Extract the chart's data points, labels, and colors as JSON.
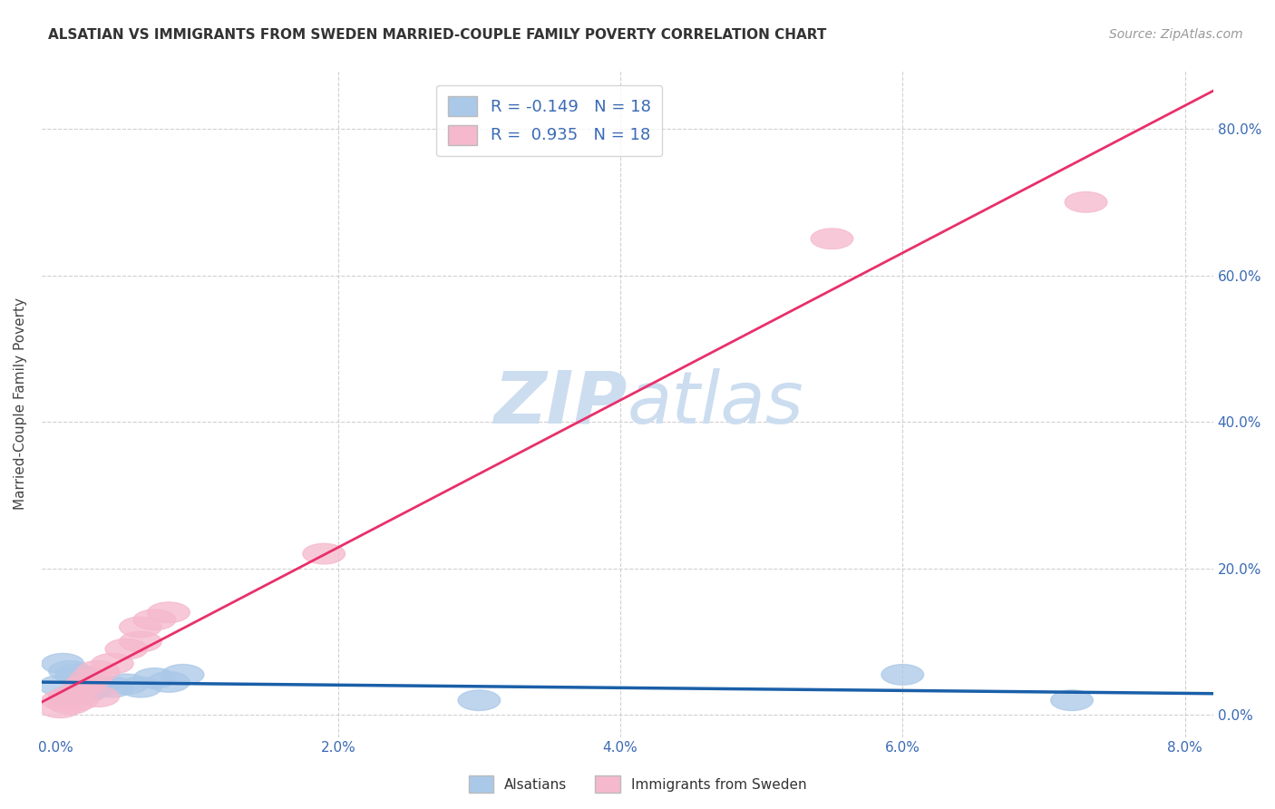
{
  "title": "ALSATIAN VS IMMIGRANTS FROM SWEDEN MARRIED-COUPLE FAMILY POVERTY CORRELATION CHART",
  "source": "Source: ZipAtlas.com",
  "ylabel": "Married-Couple Family Poverty",
  "xlabel_ticks": [
    "0.0%",
    "2.0%",
    "4.0%",
    "6.0%",
    "8.0%"
  ],
  "xlabel_vals": [
    0.0,
    0.02,
    0.04,
    0.06,
    0.08
  ],
  "ylabel_ticks": [
    "0.0%",
    "20.0%",
    "40.0%",
    "60.0%",
    "80.0%"
  ],
  "ylabel_vals": [
    0.0,
    0.2,
    0.4,
    0.6,
    0.8
  ],
  "xlim": [
    -0.001,
    0.082
  ],
  "ylim": [
    -0.03,
    0.88
  ],
  "alsatian_x": [
    0.0003,
    0.0005,
    0.001,
    0.001,
    0.0015,
    0.002,
    0.002,
    0.0025,
    0.003,
    0.004,
    0.005,
    0.006,
    0.007,
    0.008,
    0.009,
    0.03,
    0.06,
    0.072
  ],
  "alsatian_y": [
    0.04,
    0.07,
    0.06,
    0.025,
    0.055,
    0.03,
    0.045,
    0.035,
    0.04,
    0.038,
    0.042,
    0.038,
    0.05,
    0.045,
    0.055,
    0.02,
    0.055,
    0.02
  ],
  "sweden_x": [
    0.0003,
    0.0005,
    0.001,
    0.001,
    0.0015,
    0.002,
    0.0025,
    0.003,
    0.003,
    0.004,
    0.005,
    0.006,
    0.006,
    0.007,
    0.008,
    0.019,
    0.055,
    0.073
  ],
  "sweden_y": [
    0.01,
    0.02,
    0.015,
    0.025,
    0.02,
    0.04,
    0.05,
    0.06,
    0.025,
    0.07,
    0.09,
    0.1,
    0.12,
    0.13,
    0.14,
    0.22,
    0.65,
    0.7
  ],
  "R_alsatian": -0.149,
  "N_alsatian": 18,
  "R_sweden": 0.935,
  "N_sweden": 18,
  "color_alsatian": "#aac8e8",
  "color_alsatian_edge": "#aac8e8",
  "color_alsatian_line": "#1a5fa8",
  "color_sweden": "#f5b8cc",
  "color_sweden_edge": "#f5b8cc",
  "color_sweden_line": "#e8306a",
  "watermark_top": "ZIP",
  "watermark_bottom": "atlas",
  "watermark_color": "#ccddf0",
  "background_color": "#ffffff",
  "grid_color": "#d0d0d0"
}
